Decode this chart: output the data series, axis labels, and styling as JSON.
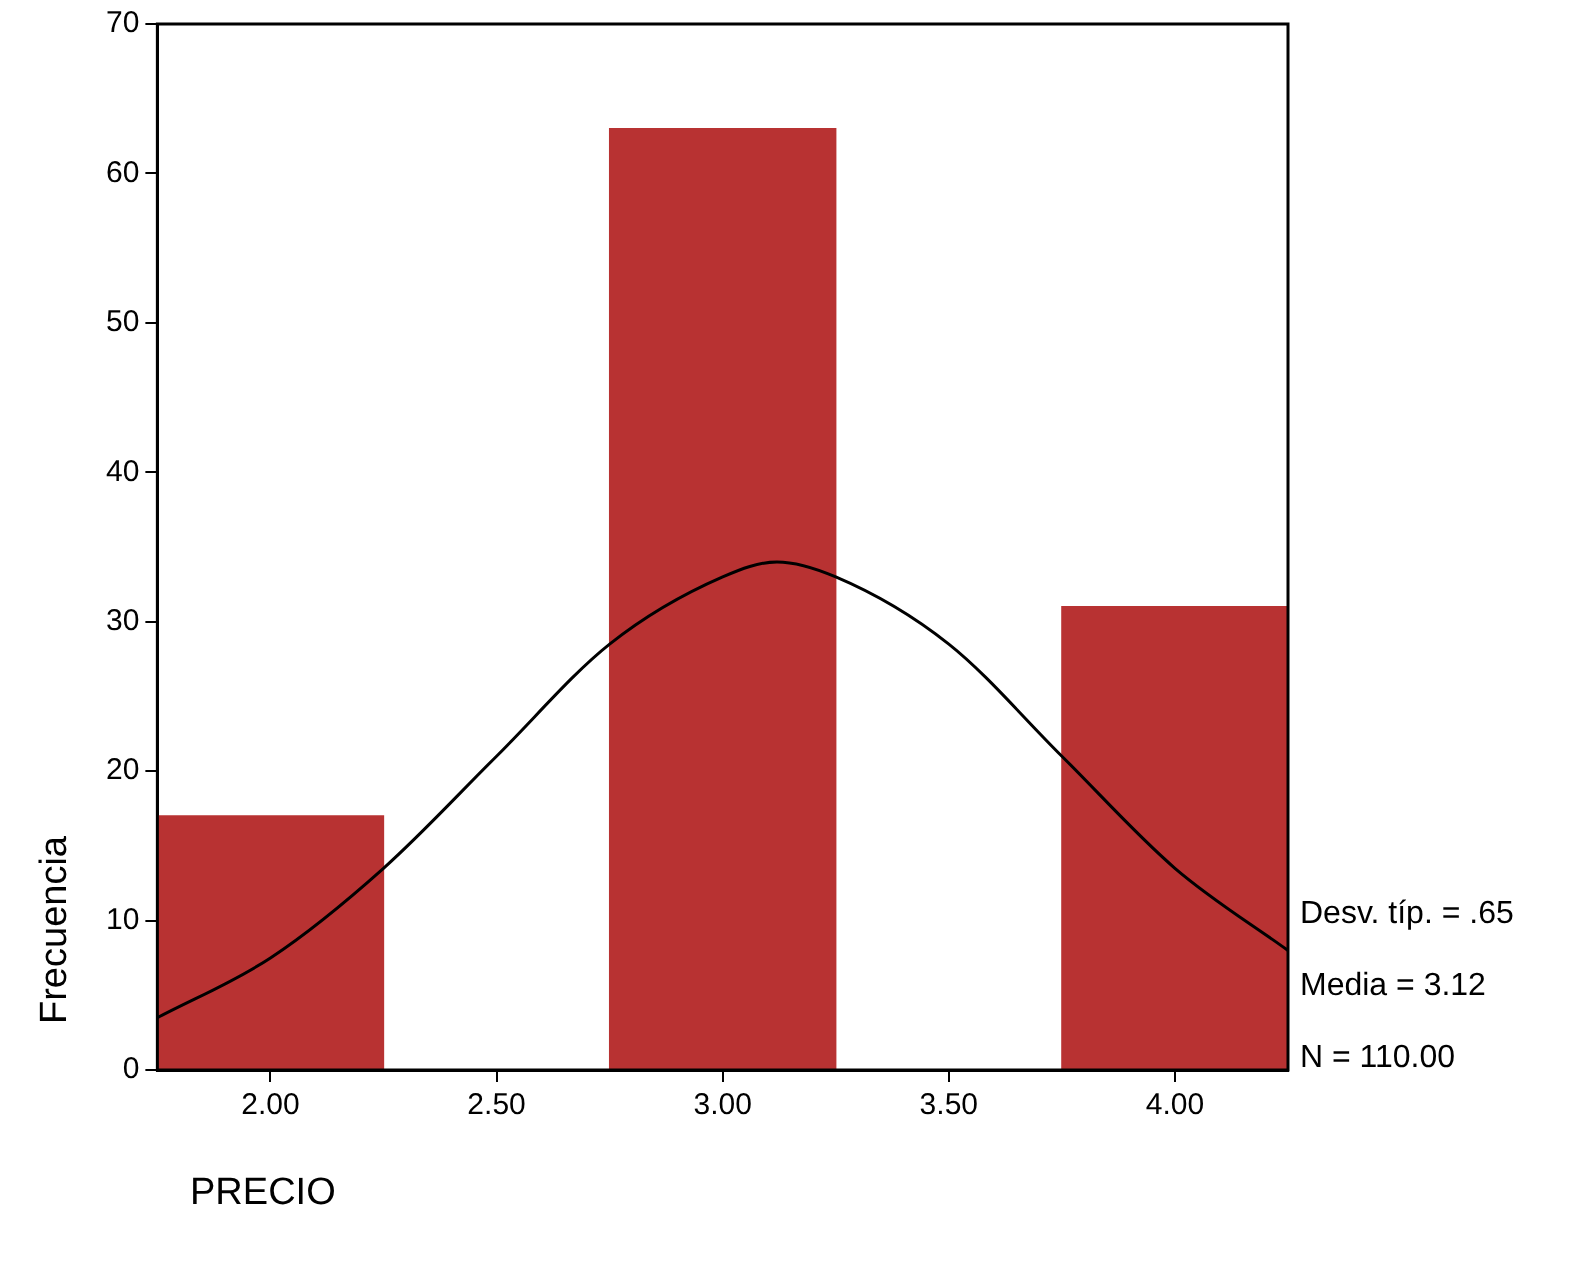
{
  "chart_data": {
    "type": "histogram",
    "xlabel": "PRECIO",
    "ylabel": "Frecuencia",
    "color": "#b83232",
    "bins": [
      1.75,
      2.25,
      2.75,
      3.25,
      3.75,
      4.25
    ],
    "values": [
      17,
      0,
      63,
      0,
      31
    ],
    "series": [
      {
        "type": "line",
        "color": "#000000",
        "x": [
          1.75,
          2.0,
          2.25,
          2.5,
          2.75,
          3.0,
          3.12,
          3.25,
          3.5,
          3.75,
          4.0,
          4.25
        ],
        "values": [
          3.5,
          7.5,
          13.5,
          21,
          28.5,
          33,
          34,
          33,
          28.5,
          21,
          13.5,
          8
        ]
      }
    ],
    "xlim": [
      1.75,
      4.25
    ],
    "xticks": [
      {
        "value": 2,
        "label": "2.00"
      },
      {
        "value": 2.5,
        "label": "2.50"
      },
      {
        "value": 3,
        "label": "3.00"
      },
      {
        "value": 3.5,
        "label": "3.50"
      },
      {
        "value": 4,
        "label": "4.00"
      }
    ],
    "ylim": [
      0,
      70
    ],
    "yticks": [
      0,
      10,
      20,
      30,
      40,
      50,
      60,
      70
    ],
    "grid": false,
    "annotations": [
      "Desv. típ. = .65",
      "Media = 3.12",
      "N = 110.00"
    ]
  }
}
